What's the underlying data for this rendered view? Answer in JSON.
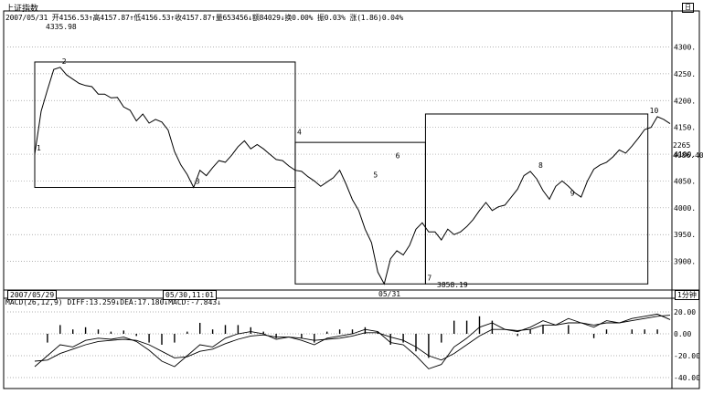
{
  "header": {
    "title": "上证指数",
    "corner_label": "日",
    "date": "2007/05/31",
    "open": "开4156.53↑",
    "high": "高4157.87↑",
    "low": "低4156.53↑",
    "close": "收4157.87↑",
    "volume": "量653456↓",
    "amount": "额84029↓",
    "turnover": "换0.00%",
    "amplitude": "振0.03%",
    "strength": "涨(1.86)0.04%"
  },
  "chart_data": [
    {
      "type": "line",
      "panel": "price",
      "y_ticks": [
        3900,
        3950,
        4000,
        4050,
        4100,
        4150,
        4200,
        4250,
        4300
      ],
      "y_tick_labels": [
        "3900.",
        "3950.",
        "4000.",
        "4050.",
        "4100.",
        "4150.",
        "4200.",
        "4250.",
        "4300."
      ],
      "ylim": [
        3850,
        4340
      ],
      "xlim": [
        0,
        1
      ],
      "x_ticks": [
        0.0,
        0.325,
        0.6
      ],
      "x_tick_labels": [
        "2007/05/29",
        "05/30,11:01",
        "05/31"
      ],
      "max_label": "4335.98",
      "min_label": "3858.19",
      "right_labels": [
        "2265",
        "4086.40"
      ],
      "grid": true,
      "series": [
        {
          "x": [
            0.0,
            0.01,
            0.02,
            0.03,
            0.04,
            0.05,
            0.06,
            0.07,
            0.08,
            0.09,
            0.1,
            0.11,
            0.12,
            0.13,
            0.14,
            0.15,
            0.16,
            0.17,
            0.18,
            0.19,
            0.2,
            0.21,
            0.22,
            0.23,
            0.24,
            0.25,
            0.26,
            0.27,
            0.28,
            0.29,
            0.3,
            0.31,
            0.32,
            0.33,
            0.34,
            0.35,
            0.36,
            0.37,
            0.38,
            0.39,
            0.4,
            0.41,
            0.42,
            0.43,
            0.44,
            0.45,
            0.46,
            0.47,
            0.48,
            0.49,
            0.5,
            0.51,
            0.52,
            0.53,
            0.54,
            0.55,
            0.56,
            0.57,
            0.58,
            0.59,
            0.6,
            0.61,
            0.62,
            0.63,
            0.64,
            0.65,
            0.66,
            0.67,
            0.68,
            0.69,
            0.7,
            0.71,
            0.72,
            0.73,
            0.74,
            0.75,
            0.76,
            0.77,
            0.78,
            0.79,
            0.8,
            0.81,
            0.82,
            0.83,
            0.84,
            0.85,
            0.86,
            0.87,
            0.88,
            0.89,
            0.9,
            0.91,
            0.92,
            0.93,
            0.94,
            0.95,
            0.96,
            0.97,
            0.98,
            0.99,
            1.0
          ],
          "y": [
            4100,
            4180,
            4220,
            4258,
            4262,
            4248,
            4240,
            4232,
            4228,
            4226,
            4212,
            4212,
            4205,
            4206,
            4188,
            4182,
            4162,
            4175,
            4158,
            4165,
            4160,
            4145,
            4105,
            4080,
            4062,
            4038,
            4070,
            4060,
            4075,
            4088,
            4085,
            4098,
            4114,
            4125,
            4110,
            4118,
            4110,
            4100,
            4090,
            4088,
            4078,
            4070,
            4068,
            4058,
            4050,
            4040,
            4048,
            4056,
            4070,
            4044,
            4015,
            3995,
            3960,
            3935,
            3880,
            3858,
            3905,
            3920,
            3912,
            3930,
            3960,
            3972,
            3955,
            3955,
            3940,
            3960,
            3950,
            3955,
            3965,
            3978,
            3995,
            4010,
            3995,
            4002,
            4005,
            4020,
            4035,
            4060,
            4068,
            4054,
            4032,
            4016,
            4040,
            4050,
            4040,
            4028,
            4020,
            4050,
            4072,
            4080,
            4085,
            4095,
            4108,
            4102,
            4115,
            4130,
            4146,
            4150,
            4170,
            4165,
            4157
          ]
        }
      ],
      "wave_labels": [
        {
          "text": "1",
          "x": 0.0,
          "y": 4100
        },
        {
          "text": "2",
          "x": 0.04,
          "y": 4262
        },
        {
          "text": "3",
          "x": 0.25,
          "y": 4038
        },
        {
          "text": "4",
          "x": 0.41,
          "y": 4130
        },
        {
          "text": "5",
          "x": 0.53,
          "y": 4050
        },
        {
          "text": "6",
          "x": 0.565,
          "y": 4086
        },
        {
          "text": "7",
          "x": 0.615,
          "y": 3858
        },
        {
          "text": "8",
          "x": 0.79,
          "y": 4068
        },
        {
          "text": "9",
          "x": 0.84,
          "y": 4016
        },
        {
          "text": "10",
          "x": 0.965,
          "y": 4170
        }
      ],
      "wave_boxes": [
        {
          "x0": 0.0,
          "x1": 0.41,
          "y0": 4038,
          "y1": 4272
        },
        {
          "x0": 0.41,
          "x1": 0.615,
          "y0": 3858,
          "y1": 4122
        },
        {
          "x0": 0.615,
          "x1": 0.965,
          "y0": 3858,
          "y1": 4175
        }
      ]
    },
    {
      "type": "macd",
      "panel": "indicator",
      "title": "MACD(26,12,9)",
      "diff_label": "DIFF:13.259↓",
      "dea_label": "DEA:17.180↓",
      "macd_label": "MACD:-7.843↓",
      "y_ticks": [
        20,
        0,
        -20,
        -40
      ],
      "y_tick_labels": [
        "20.00",
        "0.00",
        "-20.00",
        "-40.00"
      ],
      "ylim": [
        -45,
        25
      ],
      "series": [
        {
          "name": "DIFF",
          "x": [
            0.0,
            0.02,
            0.04,
            0.06,
            0.08,
            0.1,
            0.12,
            0.14,
            0.16,
            0.18,
            0.2,
            0.22,
            0.24,
            0.26,
            0.28,
            0.3,
            0.32,
            0.34,
            0.36,
            0.38,
            0.4,
            0.42,
            0.44,
            0.46,
            0.48,
            0.5,
            0.52,
            0.54,
            0.56,
            0.58,
            0.6,
            0.62,
            0.64,
            0.66,
            0.68,
            0.7,
            0.72,
            0.74,
            0.76,
            0.78,
            0.8,
            0.82,
            0.84,
            0.86,
            0.88,
            0.9,
            0.92,
            0.94,
            0.96,
            0.98,
            1.0
          ],
          "y": [
            -30,
            -20,
            -10,
            -12,
            -6,
            -4,
            -5,
            -3,
            -7,
            -15,
            -25,
            -30,
            -20,
            -10,
            -12,
            -4,
            0,
            2,
            0,
            -5,
            -3,
            -6,
            -10,
            -4,
            -2,
            0,
            4,
            2,
            -8,
            -10,
            -20,
            -32,
            -28,
            -12,
            -4,
            6,
            10,
            4,
            2,
            6,
            12,
            8,
            14,
            10,
            6,
            12,
            10,
            14,
            16,
            18,
            13
          ]
        },
        {
          "name": "DEA",
          "x": [
            0.0,
            0.02,
            0.04,
            0.06,
            0.08,
            0.1,
            0.12,
            0.14,
            0.16,
            0.18,
            0.2,
            0.22,
            0.24,
            0.26,
            0.28,
            0.3,
            0.32,
            0.34,
            0.36,
            0.38,
            0.4,
            0.42,
            0.44,
            0.46,
            0.48,
            0.5,
            0.52,
            0.54,
            0.56,
            0.58,
            0.6,
            0.62,
            0.64,
            0.66,
            0.68,
            0.7,
            0.72,
            0.74,
            0.76,
            0.78,
            0.8,
            0.82,
            0.84,
            0.86,
            0.88,
            0.9,
            0.92,
            0.94,
            0.96,
            0.98,
            1.0
          ],
          "y": [
            -25,
            -24,
            -18,
            -14,
            -10,
            -7,
            -6,
            -5,
            -6,
            -10,
            -16,
            -22,
            -21,
            -16,
            -14,
            -9,
            -5,
            -2,
            -1,
            -3,
            -3,
            -4,
            -6,
            -5,
            -4,
            -2,
            1,
            1,
            -3,
            -6,
            -12,
            -20,
            -24,
            -18,
            -10,
            -2,
            4,
            4,
            3,
            4,
            8,
            8,
            10,
            10,
            8,
            10,
            10,
            12,
            14,
            16,
            17
          ]
        }
      ],
      "histogram": {
        "x": [
          0.02,
          0.04,
          0.06,
          0.08,
          0.1,
          0.12,
          0.14,
          0.16,
          0.18,
          0.2,
          0.22,
          0.24,
          0.26,
          0.28,
          0.3,
          0.32,
          0.34,
          0.36,
          0.38,
          0.4,
          0.42,
          0.44,
          0.46,
          0.48,
          0.5,
          0.52,
          0.54,
          0.56,
          0.58,
          0.6,
          0.62,
          0.64,
          0.66,
          0.68,
          0.7,
          0.72,
          0.74,
          0.76,
          0.78,
          0.8,
          0.82,
          0.84,
          0.86,
          0.88,
          0.9,
          0.92,
          0.94,
          0.96,
          0.98
        ],
        "values": [
          -8,
          8,
          4,
          6,
          4,
          2,
          3,
          -2,
          -8,
          -10,
          -8,
          2,
          10,
          4,
          8,
          8,
          6,
          2,
          -4,
          0,
          -4,
          -8,
          2,
          4,
          4,
          6,
          2,
          -10,
          -8,
          -16,
          -22,
          -8,
          12,
          12,
          16,
          12,
          0,
          -2,
          4,
          8,
          0,
          8,
          0,
          -4,
          4,
          0,
          4,
          4,
          4
        ]
      }
    }
  ]
}
